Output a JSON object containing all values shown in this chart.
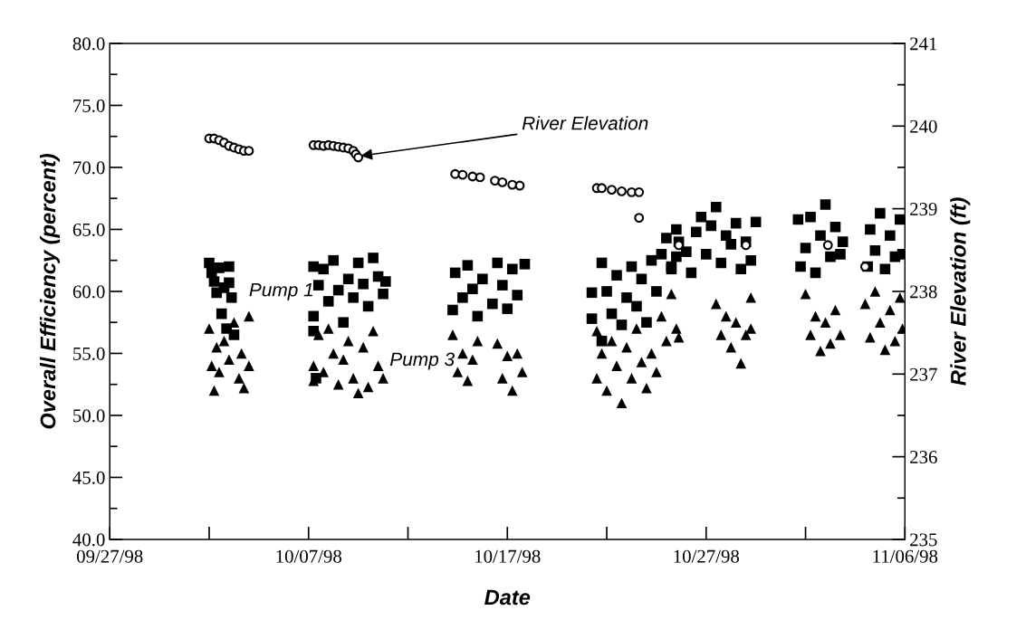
{
  "chart_data": {
    "type": "scatter",
    "xlabel": "Date",
    "ylabel": "Overall Efficiency (percent)",
    "y2label": "River Elevation (ft)",
    "xlim": [
      "1998-09-27",
      "1998-11-06"
    ],
    "xticks": [
      {
        "value": "1998-09-27",
        "label": "09/27/98"
      },
      {
        "value": "1998-10-02",
        "label": null
      },
      {
        "value": "1998-10-07",
        "label": "10/07/98"
      },
      {
        "value": "1998-10-12",
        "label": null
      },
      {
        "value": "1998-10-17",
        "label": "10/17/98"
      },
      {
        "value": "1998-10-22",
        "label": null
      },
      {
        "value": "1998-10-27",
        "label": "10/27/98"
      },
      {
        "value": "1998-11-01",
        "label": null
      },
      {
        "value": "1998-11-06",
        "label": "11/06/98"
      }
    ],
    "ylim": [
      40,
      80
    ],
    "yticks": [
      {
        "value": 40,
        "label": "40.0"
      },
      {
        "value": 42.5,
        "label": null
      },
      {
        "value": 45,
        "label": "45.0"
      },
      {
        "value": 47.5,
        "label": null
      },
      {
        "value": 50,
        "label": "50.0"
      },
      {
        "value": 52.5,
        "label": null
      },
      {
        "value": 55,
        "label": "55.0"
      },
      {
        "value": 57.5,
        "label": null
      },
      {
        "value": 60,
        "label": "60.0"
      },
      {
        "value": 62.5,
        "label": null
      },
      {
        "value": 65,
        "label": "65.0"
      },
      {
        "value": 67.5,
        "label": null
      },
      {
        "value": 70,
        "label": "70.0"
      },
      {
        "value": 72.5,
        "label": null
      },
      {
        "value": 75,
        "label": "75.0"
      },
      {
        "value": 77.5,
        "label": null
      },
      {
        "value": 80,
        "label": "80.0"
      }
    ],
    "y2lim": [
      235,
      241
    ],
    "y2ticks": [
      235,
      {
        "value": 235.5,
        "label": null
      },
      236,
      {
        "value": 236.5,
        "label": null
      },
      237,
      {
        "value": 237.5,
        "label": null
      },
      238,
      {
        "value": 238.5,
        "label": null
      },
      239,
      {
        "value": 239.5,
        "label": null
      },
      240,
      {
        "value": 240.5,
        "label": null
      },
      241
    ],
    "grid": false,
    "legend": false,
    "annotations": [
      "Pump 1",
      "Pump 3",
      {
        "text": "River Elevation",
        "x": "1998-10-09T12:00",
        "y": 70.9
      }
    ],
    "series": [
      {
        "color": "#000000",
        "marker": "square",
        "x": [
          "1998-10-02T00:00",
          "1998-10-02T03:00",
          "1998-10-02T06:00",
          "1998-10-02T09:00",
          "1998-10-02T12:00",
          "1998-10-02T15:00",
          "1998-10-02T18:00",
          "1998-10-02T21:00",
          "1998-10-03T00:00",
          "1998-10-03T03:00",
          "1998-10-03T06:00",
          "1998-10-03T00:00",
          "1998-10-07T06:00",
          "1998-10-07T06:00",
          "1998-10-07T06:00",
          "1998-10-07T09:00",
          "1998-10-07T12:00",
          "1998-10-07T18:00",
          "1998-10-08T00:00",
          "1998-10-08T06:00",
          "1998-10-08T12:00",
          "1998-10-08T18:00",
          "1998-10-09T00:00",
          "1998-10-09T06:00",
          "1998-10-09T12:00",
          "1998-10-09T18:00",
          "1998-10-10T00:00",
          "1998-10-10T06:00",
          "1998-10-10T12:00",
          "1998-10-10T18:00",
          "1998-10-10T21:00",
          "1998-10-14T06:00",
          "1998-10-14T09:00",
          "1998-10-14T18:00",
          "1998-10-15T00:00",
          "1998-10-15T06:00",
          "1998-10-15T12:00",
          "1998-10-15T18:00",
          "1998-10-16T06:00",
          "1998-10-16T12:00",
          "1998-10-16T18:00",
          "1998-10-17T00:00",
          "1998-10-17T06:00",
          "1998-10-17T12:00",
          "1998-10-17T21:00",
          "1998-10-21T06:00",
          "1998-10-21T06:00",
          "1998-10-21T18:00",
          "1998-10-21T18:00",
          "1998-10-22T00:00",
          "1998-10-22T06:00",
          "1998-10-22T12:00",
          "1998-10-22T18:00",
          "1998-10-23T00:00",
          "1998-10-23T06:00",
          "1998-10-23T12:00",
          "1998-10-23T18:00",
          "1998-10-24T00:00",
          "1998-10-24T06:00",
          "1998-10-24T12:00",
          "1998-10-24T18:00",
          "1998-10-25T00:00",
          "1998-10-25T06:00",
          "1998-10-25T12:00",
          "1998-10-25T15:00",
          "1998-10-25T06:00",
          "1998-10-25T12:00",
          "1998-10-26T00:00",
          "1998-10-26T06:00",
          "1998-10-26T12:00",
          "1998-10-26T18:00",
          "1998-10-27T00:00",
          "1998-10-27T06:00",
          "1998-10-27T12:00",
          "1998-10-27T18:00",
          "1998-10-28T00:00",
          "1998-10-28T06:00",
          "1998-10-28T12:00",
          "1998-10-28T18:00",
          "1998-10-29T00:00",
          "1998-10-29T06:00",
          "1998-10-29T12:00",
          "1998-10-31T15:00",
          "1998-10-31T18:00",
          "1998-11-01T00:00",
          "1998-11-01T06:00",
          "1998-11-01T12:00",
          "1998-11-01T18:00",
          "1998-11-02T00:00",
          "1998-11-02T06:00",
          "1998-11-02T12:00",
          "1998-11-02T18:00",
          "1998-11-02T21:00",
          "1998-11-04T03:00",
          "1998-11-04T06:00",
          "1998-11-04T12:00",
          "1998-11-04T18:00",
          "1998-11-05T00:00",
          "1998-11-05T06:00",
          "1998-11-05T12:00",
          "1998-11-05T18:00",
          "1998-11-05T21:00"
        ],
        "values": [
          62.3,
          61.5,
          60.8,
          59.9,
          61.9,
          58.2,
          60.3,
          57.0,
          62.0,
          59.5,
          56.5,
          60.7,
          62.0,
          58.0,
          56.8,
          53.0,
          60.5,
          61.8,
          59.2,
          62.5,
          60.1,
          57.5,
          61.0,
          59.5,
          62.3,
          60.6,
          58.8,
          62.7,
          61.2,
          59.8,
          60.8,
          58.5,
          61.5,
          59.5,
          62.1,
          60.2,
          58.0,
          61.0,
          59.0,
          62.3,
          60.5,
          58.6,
          61.8,
          59.7,
          62.2,
          59.9,
          57.8,
          62.3,
          56.0,
          60.0,
          58.2,
          61.3,
          57.3,
          59.5,
          62.0,
          58.8,
          61.0,
          57.5,
          62.5,
          60.0,
          63.0,
          64.3,
          61.8,
          62.8,
          64.0,
          62.0,
          65.0,
          63.2,
          61.5,
          64.8,
          66.0,
          63.0,
          65.3,
          66.8,
          62.3,
          64.5,
          63.8,
          65.5,
          61.8,
          64.0,
          62.5,
          65.6,
          65.8,
          62.0,
          63.5,
          66.0,
          61.5,
          64.5,
          67.0,
          62.8,
          65.2,
          63.0,
          64.0,
          62.0,
          65.0,
          63.3,
          66.3,
          61.8,
          64.5,
          62.8,
          65.8,
          63.0
        ]
      },
      {
        "color": "#000000",
        "marker": "triangle",
        "x": [
          "1998-10-02T00:00",
          "1998-10-02T03:00",
          "1998-10-02T06:00",
          "1998-10-02T09:00",
          "1998-10-02T12:00",
          "1998-10-02T18:00",
          "1998-10-03T00:00",
          "1998-10-03T06:00",
          "1998-10-03T12:00",
          "1998-10-03T15:00",
          "1998-10-03T18:00",
          "1998-10-04T00:00",
          "1998-10-04T00:00",
          "1998-10-07T06:00",
          "1998-10-07T06:00",
          "1998-10-07T12:00",
          "1998-10-07T18:00",
          "1998-10-08T00:00",
          "1998-10-08T06:00",
          "1998-10-08T12:00",
          "1998-10-08T18:00",
          "1998-10-09T00:00",
          "1998-10-09T06:00",
          "1998-10-09T12:00",
          "1998-10-09T18:00",
          "1998-10-10T00:00",
          "1998-10-10T06:00",
          "1998-10-10T12:00",
          "1998-10-10T18:00",
          "1998-10-14T06:00",
          "1998-10-14T12:00",
          "1998-10-14T18:00",
          "1998-10-15T00:00",
          "1998-10-15T06:00",
          "1998-10-15T12:00",
          "1998-10-16T12:00",
          "1998-10-16T18:00",
          "1998-10-17T00:00",
          "1998-10-17T06:00",
          "1998-10-17T12:00",
          "1998-10-17T18:00",
          "1998-10-21T12:00",
          "1998-10-21T12:00",
          "1998-10-21T18:00",
          "1998-10-22T00:00",
          "1998-10-22T06:00",
          "1998-10-22T12:00",
          "1998-10-22T18:00",
          "1998-10-23T00:00",
          "1998-10-23T06:00",
          "1998-10-23T12:00",
          "1998-10-23T18:00",
          "1998-10-24T00:00",
          "1998-10-24T06:00",
          "1998-10-24T12:00",
          "1998-10-24T18:00",
          "1998-10-25T00:00",
          "1998-10-25T06:00",
          "1998-10-25T12:00",
          "1998-10-25T15:00",
          "1998-10-27T12:00",
          "1998-10-27T18:00",
          "1998-10-28T00:00",
          "1998-10-28T06:00",
          "1998-10-28T12:00",
          "1998-10-28T18:00",
          "1998-10-29T00:00",
          "1998-10-29T06:00",
          "1998-10-29T06:00",
          "1998-11-01T00:00",
          "1998-11-01T06:00",
          "1998-11-01T12:00",
          "1998-11-01T18:00",
          "1998-11-02T00:00",
          "1998-11-02T06:00",
          "1998-11-02T12:00",
          "1998-11-02T18:00",
          "1998-11-04T00:00",
          "1998-11-04T06:00",
          "1998-11-04T12:00",
          "1998-11-04T18:00",
          "1998-11-05T00:00",
          "1998-11-05T06:00",
          "1998-11-05T12:00",
          "1998-11-05T18:00",
          "1998-11-05T21:00"
        ],
        "values": [
          57.0,
          54.0,
          52.0,
          55.5,
          53.5,
          56.0,
          54.5,
          57.5,
          53.0,
          55.0,
          52.2,
          54.0,
          58.0,
          54.0,
          52.8,
          56.5,
          53.5,
          57.0,
          55.0,
          52.5,
          54.5,
          56.0,
          53.0,
          51.8,
          55.5,
          52.3,
          56.8,
          54.0,
          53.0,
          56.5,
          53.5,
          55.0,
          52.8,
          54.5,
          56.0,
          55.8,
          53.0,
          54.8,
          52.0,
          55.0,
          53.5,
          56.8,
          53.0,
          55.0,
          52.0,
          56.0,
          54.0,
          51.0,
          55.5,
          53.0,
          57.0,
          54.3,
          52.2,
          55.0,
          53.5,
          58.0,
          56.0,
          59.8,
          57.0,
          56.3,
          59.0,
          56.5,
          58.0,
          55.5,
          57.5,
          54.2,
          56.5,
          59.5,
          57.0,
          59.8,
          56.5,
          58.0,
          55.2,
          57.5,
          55.8,
          58.5,
          56.5,
          59.0,
          56.3,
          60.0,
          57.5,
          55.3,
          58.5,
          56.0,
          59.5,
          57.0
        ]
      },
      {
        "color": "#000000",
        "marker": "circle",
        "axis": "y2",
        "x": [
          "1998-10-02T00:00",
          "1998-10-02T06:00",
          "1998-10-02T12:00",
          "1998-10-02T18:00",
          "1998-10-03T00:00",
          "1998-10-03T06:00",
          "1998-10-03T12:00",
          "1998-10-03T18:00",
          "1998-10-04T00:00",
          "1998-10-07T06:00",
          "1998-10-07T12:00",
          "1998-10-07T18:00",
          "1998-10-08T00:00",
          "1998-10-08T06:00",
          "1998-10-08T12:00",
          "1998-10-08T18:00",
          "1998-10-09T00:00",
          "1998-10-09T06:00",
          "1998-10-09T09:00",
          "1998-10-09T12:00",
          "1998-10-14T09:00",
          "1998-10-14T18:00",
          "1998-10-15T06:00",
          "1998-10-15T15:00",
          "1998-10-16T09:00",
          "1998-10-16T18:00",
          "1998-10-17T06:00",
          "1998-10-17T15:00",
          "1998-10-21T12:00",
          "1998-10-21T18:00",
          "1998-10-22T06:00",
          "1998-10-22T18:00",
          "1998-10-23T06:00",
          "1998-10-23T15:00",
          "1998-10-23T15:00",
          "1998-10-25T15:00",
          "1998-10-29T00:00",
          "1998-11-02T03:00",
          "1998-11-04T00:00"
        ],
        "values": [
          239.85,
          239.85,
          239.83,
          239.8,
          239.76,
          239.74,
          239.72,
          239.7,
          239.7,
          239.77,
          239.77,
          239.76,
          239.77,
          239.76,
          239.75,
          239.74,
          239.73,
          239.7,
          239.66,
          239.62,
          239.42,
          239.41,
          239.39,
          239.38,
          239.34,
          239.32,
          239.29,
          239.28,
          239.25,
          239.25,
          239.23,
          239.21,
          239.2,
          239.2,
          238.89,
          238.56,
          238.56,
          238.56,
          238.3
        ]
      }
    ]
  }
}
